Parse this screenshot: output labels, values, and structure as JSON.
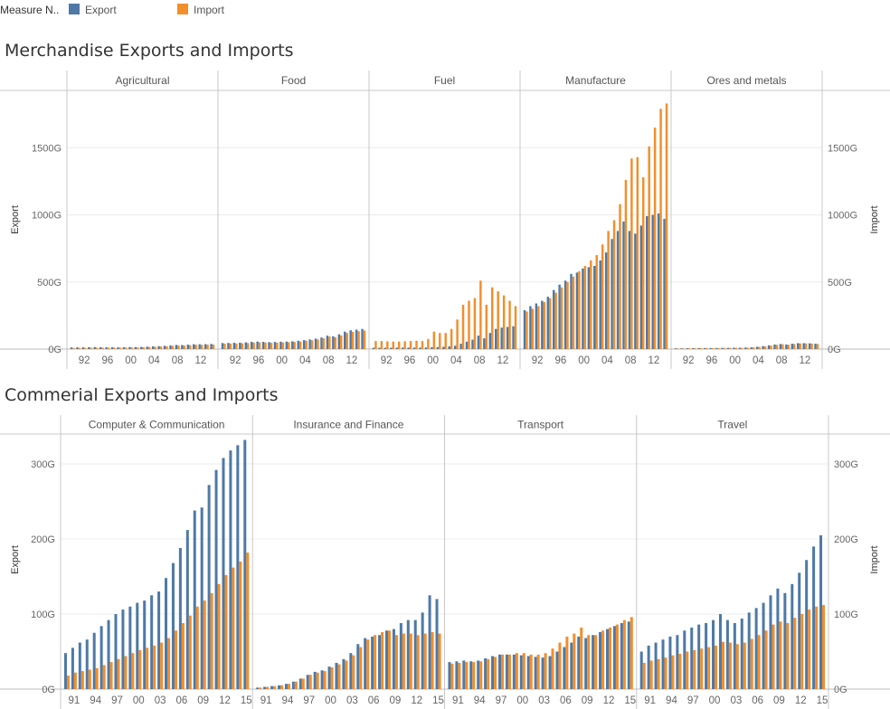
{
  "legend": {
    "title": "Measure N..",
    "items": [
      {
        "name": "Export",
        "color": "#4e79a7"
      },
      {
        "name": "Import",
        "color": "#f28e2b"
      }
    ]
  },
  "sections": [
    {
      "title": "Merchandise Exports and Imports"
    },
    {
      "title": "Commerial Exports and Imports"
    }
  ],
  "chart_data": [
    {
      "type": "bar",
      "title": "Merchandise Exports and Imports",
      "ylabel_left": "Export",
      "ylabel_right": "Import",
      "ylim": [
        0,
        1900
      ],
      "yticks": [
        0,
        500,
        1000,
        1500
      ],
      "ytick_labels": [
        "0G",
        "500G",
        "1000G",
        "1500G"
      ],
      "years": [
        1990,
        1991,
        1992,
        1993,
        1994,
        1995,
        1996,
        1997,
        1998,
        1999,
        2000,
        2001,
        2002,
        2003,
        2004,
        2005,
        2006,
        2007,
        2008,
        2009,
        2010,
        2011,
        2012,
        2013,
        2014
      ],
      "xtick_labels": [
        "92",
        "96",
        "00",
        "04",
        "08",
        "12"
      ],
      "xtick_years": [
        1992,
        1996,
        2000,
        2004,
        2008,
        2012
      ],
      "grid": true,
      "legend_position": "top-left",
      "panels": [
        {
          "name": "Agricultural",
          "export": [
            12,
            13,
            13,
            14,
            15,
            14,
            13,
            14,
            13,
            14,
            15,
            15,
            16,
            18,
            20,
            22,
            24,
            27,
            31,
            30,
            33,
            36,
            36,
            37,
            38
          ],
          "import": [
            8,
            9,
            9,
            10,
            10,
            10,
            10,
            10,
            10,
            11,
            12,
            12,
            13,
            15,
            17,
            19,
            21,
            24,
            27,
            26,
            29,
            32,
            32,
            33,
            34
          ]
        },
        {
          "name": "Food",
          "export": [
            45,
            46,
            47,
            48,
            50,
            54,
            56,
            54,
            52,
            53,
            55,
            56,
            58,
            62,
            67,
            72,
            78,
            86,
            100,
            95,
            110,
            130,
            140,
            145,
            150
          ],
          "import": [
            40,
            41,
            42,
            43,
            45,
            48,
            50,
            49,
            47,
            48,
            50,
            51,
            53,
            57,
            62,
            66,
            72,
            80,
            93,
            88,
            102,
            120,
            128,
            133,
            138
          ]
        },
        {
          "name": "Fuel",
          "export": [
            10,
            10,
            10,
            10,
            11,
            11,
            11,
            11,
            11,
            12,
            14,
            15,
            17,
            20,
            25,
            40,
            55,
            70,
            100,
            80,
            120,
            150,
            160,
            165,
            170
          ],
          "import": [
            60,
            60,
            58,
            56,
            56,
            58,
            60,
            62,
            60,
            75,
            130,
            120,
            120,
            150,
            220,
            330,
            360,
            380,
            510,
            330,
            460,
            430,
            400,
            360,
            320
          ]
        },
        {
          "name": "Manufacture",
          "export": [
            290,
            320,
            340,
            360,
            390,
            440,
            480,
            510,
            560,
            570,
            600,
            610,
            620,
            660,
            720,
            820,
            880,
            950,
            880,
            860,
            920,
            990,
            1000,
            1010,
            970
          ],
          "import": [
            280,
            300,
            320,
            350,
            380,
            420,
            460,
            500,
            540,
            580,
            620,
            660,
            700,
            780,
            880,
            960,
            1080,
            1260,
            1420,
            1430,
            1280,
            1510,
            1650,
            1790,
            1830
          ]
        },
        {
          "name": "Ores and metals",
          "export": [
            6,
            6,
            7,
            7,
            8,
            8,
            8,
            8,
            9,
            9,
            10,
            10,
            11,
            13,
            17,
            22,
            28,
            34,
            38,
            34,
            40,
            44,
            44,
            43,
            40
          ],
          "import": [
            5,
            5,
            6,
            6,
            7,
            7,
            7,
            7,
            8,
            8,
            9,
            9,
            10,
            12,
            16,
            20,
            26,
            32,
            36,
            32,
            38,
            42,
            42,
            41,
            38
          ]
        }
      ]
    },
    {
      "type": "bar",
      "title": "Commerial Exports and Imports",
      "ylabel_left": "Export",
      "ylabel_right": "Import",
      "ylim": [
        0,
        335
      ],
      "yticks": [
        0,
        100,
        200,
        300
      ],
      "ytick_labels": [
        "0G",
        "100G",
        "200G",
        "300G"
      ],
      "years": [
        1990,
        1991,
        1992,
        1993,
        1994,
        1995,
        1996,
        1997,
        1998,
        1999,
        2000,
        2001,
        2002,
        2003,
        2004,
        2005,
        2006,
        2007,
        2008,
        2009,
        2010,
        2011,
        2012,
        2013,
        2014,
        2015
      ],
      "xtick_labels": [
        "91",
        "94",
        "97",
        "00",
        "03",
        "06",
        "09",
        "12",
        "15"
      ],
      "xtick_years": [
        1991,
        1994,
        1997,
        2000,
        2003,
        2006,
        2009,
        2012,
        2015
      ],
      "grid": true,
      "legend_position": "top-left",
      "panels": [
        {
          "name": "Computer & Communication",
          "export": [
            48,
            55,
            62,
            66,
            75,
            84,
            92,
            100,
            106,
            110,
            115,
            118,
            125,
            130,
            148,
            168,
            188,
            212,
            238,
            242,
            272,
            292,
            308,
            318,
            325,
            332
          ],
          "import": [
            18,
            22,
            24,
            26,
            28,
            32,
            36,
            40,
            44,
            48,
            52,
            55,
            58,
            62,
            68,
            78,
            88,
            98,
            110,
            118,
            128,
            140,
            152,
            162,
            170,
            182
          ]
        },
        {
          "name": "Insurance and Finance",
          "export": [
            2,
            3,
            4,
            5,
            7,
            10,
            14,
            19,
            23,
            25,
            30,
            35,
            40,
            48,
            60,
            68,
            70,
            72,
            78,
            80,
            88,
            92,
            92,
            102,
            125,
            120
          ],
          "import": [
            2,
            3,
            4,
            5,
            7,
            10,
            14,
            19,
            22,
            24,
            29,
            33,
            38,
            45,
            56,
            66,
            72,
            76,
            78,
            72,
            74,
            74,
            72,
            74,
            76,
            74
          ]
        },
        {
          "name": "Transport",
          "export": [
            36,
            37,
            38,
            37,
            38,
            41,
            44,
            46,
            46,
            46,
            45,
            44,
            43,
            42,
            44,
            50,
            56,
            62,
            70,
            68,
            72,
            76,
            80,
            84,
            88,
            90
          ],
          "import": [
            34,
            35,
            36,
            36,
            37,
            40,
            43,
            46,
            46,
            48,
            48,
            46,
            46,
            48,
            54,
            62,
            70,
            74,
            82,
            72,
            72,
            78,
            82,
            86,
            92,
            96
          ]
        },
        {
          "name": "Travel",
          "export": [
            50,
            58,
            62,
            66,
            70,
            72,
            78,
            82,
            86,
            88,
            92,
            100,
            92,
            88,
            94,
            102,
            108,
            115,
            125,
            134,
            128,
            140,
            155,
            172,
            190,
            205
          ],
          "import": [
            35,
            38,
            40,
            42,
            45,
            47,
            50,
            52,
            54,
            56,
            58,
            63,
            62,
            60,
            62,
            67,
            72,
            78,
            86,
            90,
            88,
            95,
            100,
            106,
            110,
            112
          ]
        }
      ]
    }
  ]
}
